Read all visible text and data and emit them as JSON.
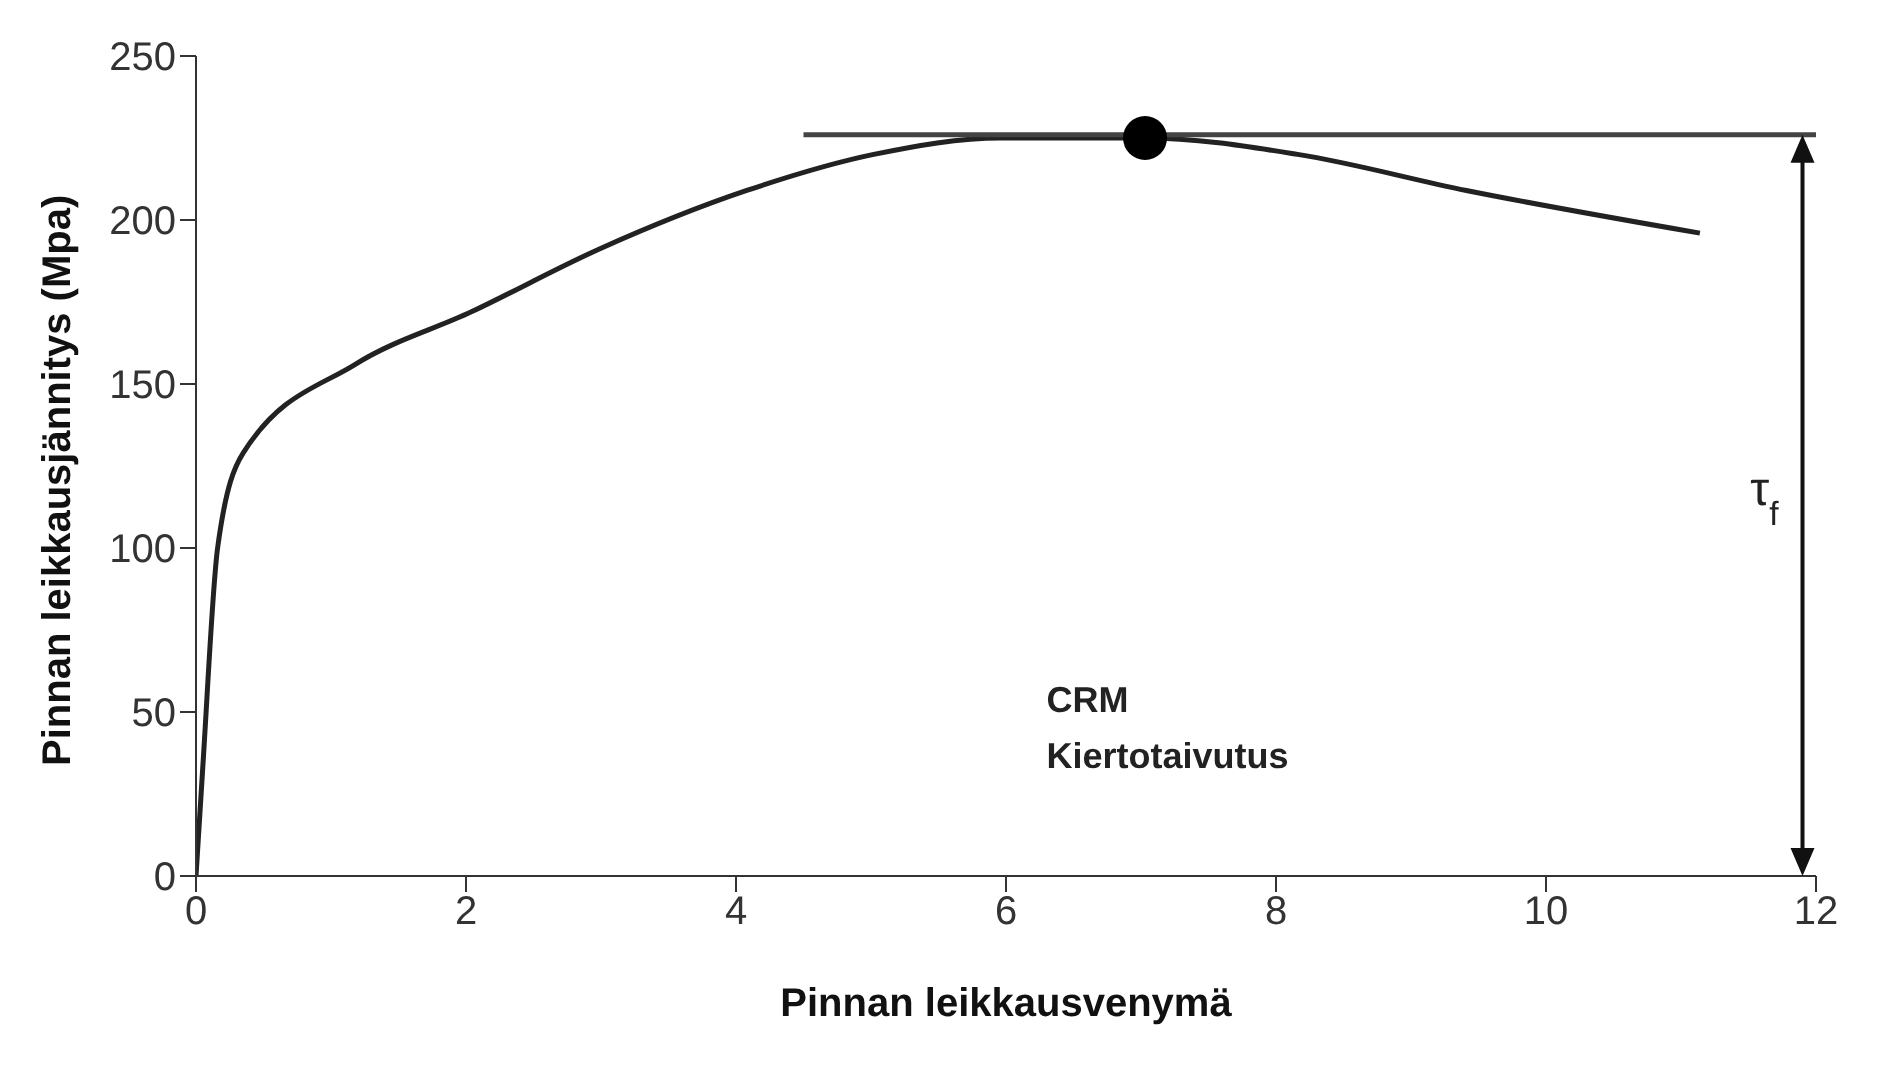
{
  "chart_data": {
    "type": "line",
    "xlabel": "Pinnan leikkausvenymä",
    "ylabel": "Pinnan leikkausjännitys  (Mpa)",
    "xlim": [
      0,
      12
    ],
    "xticks": [
      0,
      2,
      4,
      6,
      8,
      10,
      12
    ],
    "ylim": [
      0,
      250
    ],
    "yticks": [
      0,
      50,
      100,
      150,
      200,
      250
    ],
    "series": [
      {
        "color": "#222222",
        "x": [
          0,
          0.05,
          0.16,
          0.35,
          1.18,
          2.04,
          2.98,
          4.08,
          5.02,
          5.96,
          7.03,
          8.16,
          9.41,
          11.14
        ],
        "values": [
          0,
          33,
          100,
          129,
          156,
          172,
          191,
          209,
          220,
          225,
          225,
          220,
          209,
          196
        ]
      },
      {
        "type": "line",
        "color": "#444444",
        "x": [
          4.5,
          12
        ],
        "values": [
          226,
          226
        ]
      },
      {
        "type": "scatter",
        "color": "#000000",
        "x": [
          7.03
        ],
        "values": [
          225
        ]
      }
    ],
    "annotations": [
      "τ$_{f}$",
      "CRM",
      "Kiertotaivutus"
    ]
  }
}
